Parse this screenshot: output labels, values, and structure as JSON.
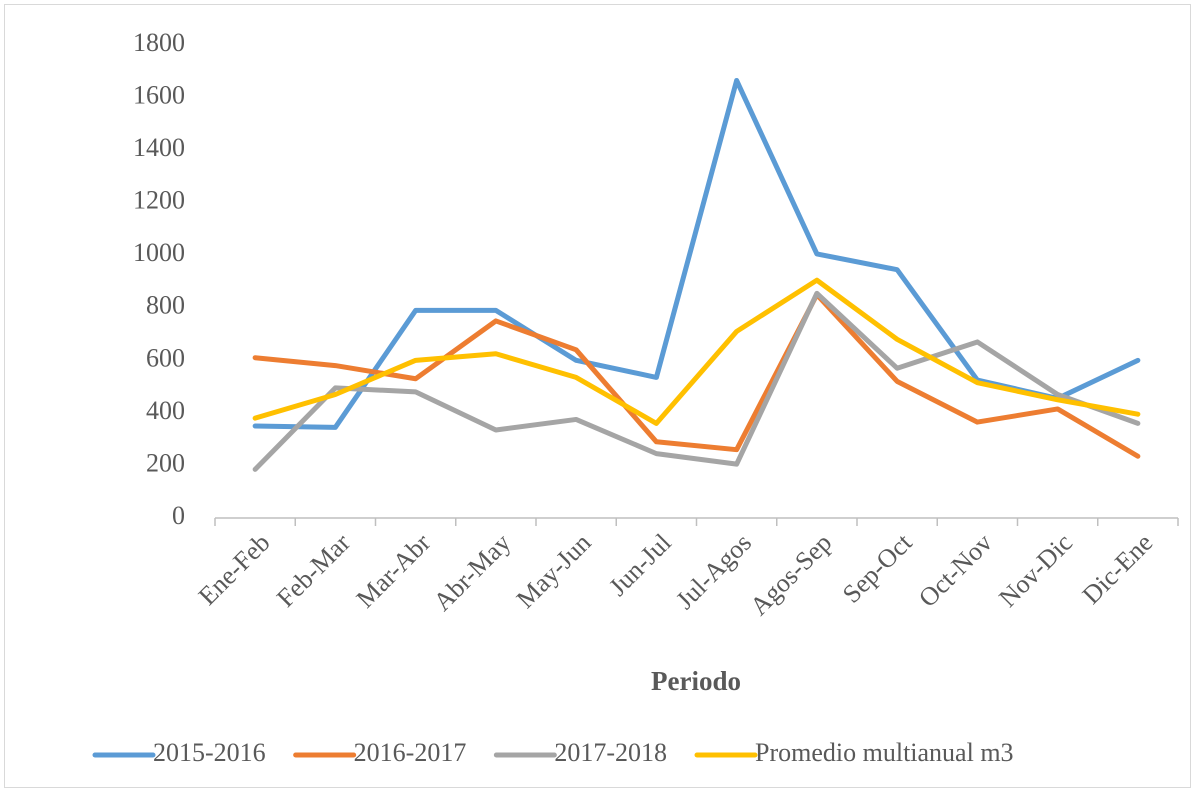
{
  "chart_data": {
    "type": "line",
    "x_label": "Periodo",
    "categories": [
      "Ene-Feb",
      "Feb-Mar",
      "Mar-Abr",
      "Abr-May",
      "May-Jun",
      "Jun-Jul",
      "Jul-Agos",
      "Agos-Sep",
      "Sep-Oct",
      "Oct-Nov",
      "Nov-Dic",
      "Dic-Ene"
    ],
    "series": [
      {
        "name": "2015-2016",
        "color": "#5b9bd5",
        "values": [
          350,
          345,
          790,
          790,
          600,
          535,
          1665,
          1005,
          945,
          525,
          455,
          600
        ]
      },
      {
        "name": "2016-2017",
        "color": "#ed7d31",
        "values": [
          610,
          580,
          530,
          750,
          640,
          290,
          260,
          850,
          520,
          365,
          415,
          235
        ]
      },
      {
        "name": "2017-2018",
        "color": "#a5a5a5",
        "values": [
          185,
          495,
          480,
          335,
          375,
          245,
          205,
          855,
          570,
          670,
          470,
          360
        ]
      },
      {
        "name": "Promedio multianual m3",
        "color": "#ffc000",
        "values": [
          380,
          470,
          600,
          625,
          535,
          360,
          710,
          905,
          680,
          515,
          450,
          395
        ]
      }
    ],
    "ylim": [
      0,
      1800
    ],
    "yticks": [
      0,
      200,
      400,
      600,
      800,
      1000,
      1200,
      1400,
      1600,
      1800
    ],
    "grid": false,
    "legend": "bottom"
  }
}
